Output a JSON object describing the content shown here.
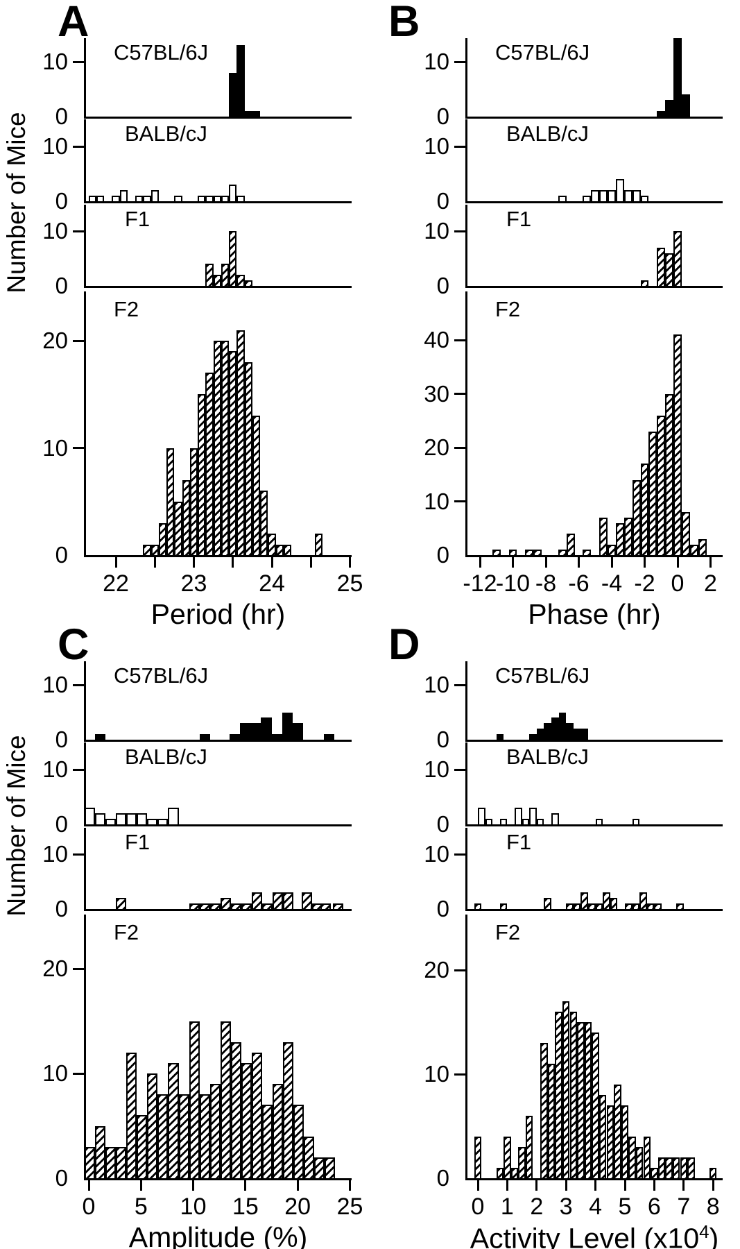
{
  "figure": {
    "ylabel": "Number of Mice",
    "strains": [
      "C57BL/6J",
      "BALB/cJ",
      "F1",
      "F2"
    ]
  },
  "chart_data": [
    {
      "panel": "A",
      "type": "bar",
      "xlabel": "Period (hr)",
      "bin_width": 0.1,
      "x_domain": [
        21.6,
        25.1
      ],
      "x_ticks": [
        {
          "v": 22,
          "label": "22"
        },
        {
          "v": 22.5,
          "label": ""
        },
        {
          "v": 23,
          "label": "23"
        },
        {
          "v": 23.5,
          "label": ""
        },
        {
          "v": 24,
          "label": "24"
        },
        {
          "v": 24.5,
          "label": ""
        },
        {
          "v": 25,
          "label": "25"
        }
      ],
      "rows": [
        {
          "strain": "C57BL/6J",
          "fill": "solid",
          "yticks": [
            0,
            10
          ],
          "ymax": 14,
          "bars": [
            [
              23.5,
              8
            ],
            [
              23.6,
              13
            ],
            [
              23.7,
              1
            ],
            [
              23.8,
              1
            ]
          ]
        },
        {
          "strain": "BALB/cJ",
          "fill": "open",
          "yticks": [
            0,
            10
          ],
          "ymax": 14,
          "bars": [
            [
              21.7,
              1
            ],
            [
              21.8,
              1
            ],
            [
              22.0,
              1
            ],
            [
              22.1,
              2
            ],
            [
              22.3,
              1
            ],
            [
              22.4,
              1
            ],
            [
              22.5,
              2
            ],
            [
              22.8,
              1
            ],
            [
              23.1,
              1
            ],
            [
              23.2,
              1
            ],
            [
              23.3,
              1
            ],
            [
              23.4,
              1
            ],
            [
              23.5,
              3
            ],
            [
              23.6,
              1
            ]
          ]
        },
        {
          "strain": "F1",
          "fill": "hatch",
          "yticks": [
            0,
            10
          ],
          "ymax": 14,
          "bars": [
            [
              23.2,
              4
            ],
            [
              23.3,
              2
            ],
            [
              23.4,
              4
            ],
            [
              23.5,
              10
            ],
            [
              23.6,
              2
            ],
            [
              23.7,
              1
            ]
          ]
        },
        {
          "strain": "F2",
          "fill": "hatch",
          "yticks": [
            0,
            10,
            20
          ],
          "ymax": 24.5,
          "bars": [
            [
              22.4,
              1
            ],
            [
              22.5,
              1
            ],
            [
              22.6,
              3
            ],
            [
              22.7,
              10
            ],
            [
              22.8,
              5
            ],
            [
              22.9,
              7
            ],
            [
              23.0,
              10
            ],
            [
              23.1,
              15
            ],
            [
              23.2,
              17
            ],
            [
              23.3,
              20
            ],
            [
              23.4,
              20
            ],
            [
              23.5,
              19
            ],
            [
              23.6,
              21
            ],
            [
              23.7,
              18
            ],
            [
              23.8,
              13
            ],
            [
              23.9,
              6
            ],
            [
              24.0,
              2
            ],
            [
              24.1,
              1
            ],
            [
              24.2,
              1
            ],
            [
              24.6,
              2
            ]
          ]
        }
      ]
    },
    {
      "panel": "B",
      "type": "bar",
      "xlabel": "Phase (hr)",
      "bin_width": 0.5,
      "x_domain": [
        -13,
        2.8
      ],
      "x_ticks": [
        {
          "v": -12,
          "label": "-12"
        },
        {
          "v": -10,
          "label": "-10"
        },
        {
          "v": -8,
          "label": "-8"
        },
        {
          "v": -6,
          "label": "-6"
        },
        {
          "v": -4,
          "label": "-4"
        },
        {
          "v": -2,
          "label": "-2"
        },
        {
          "v": 0,
          "label": "0"
        },
        {
          "v": 2,
          "label": "2"
        }
      ],
      "rows": [
        {
          "strain": "C57BL/6J",
          "fill": "solid",
          "yticks": [
            0,
            10
          ],
          "ymax": 14,
          "bars": [
            [
              -1,
              1
            ],
            [
              -0.5,
              3
            ],
            [
              0,
              15
            ],
            [
              0.5,
              4
            ]
          ]
        },
        {
          "strain": "BALB/cJ",
          "fill": "open",
          "yticks": [
            0,
            10
          ],
          "ymax": 14,
          "bars": [
            [
              -7,
              1
            ],
            [
              -5.5,
              1
            ],
            [
              -5,
              2
            ],
            [
              -4.5,
              2
            ],
            [
              -4,
              2
            ],
            [
              -3.5,
              4
            ],
            [
              -3,
              2
            ],
            [
              -2.5,
              2
            ],
            [
              -2,
              1
            ]
          ]
        },
        {
          "strain": "F1",
          "fill": "hatch",
          "yticks": [
            0,
            10
          ],
          "ymax": 14,
          "bars": [
            [
              -2,
              1
            ],
            [
              -1,
              7
            ],
            [
              -0.5,
              6
            ],
            [
              0,
              10
            ]
          ]
        },
        {
          "strain": "F2",
          "fill": "hatch",
          "yticks": [
            0,
            10,
            20,
            30,
            40
          ],
          "ymax": 49,
          "bars": [
            [
              -11,
              1
            ],
            [
              -10,
              1
            ],
            [
              -9,
              1
            ],
            [
              -8.5,
              1
            ],
            [
              -7,
              1
            ],
            [
              -6.5,
              4
            ],
            [
              -5.5,
              1
            ],
            [
              -4.5,
              7
            ],
            [
              -4,
              2
            ],
            [
              -3.5,
              6
            ],
            [
              -3,
              7
            ],
            [
              -2.5,
              14
            ],
            [
              -2,
              17
            ],
            [
              -1.5,
              23
            ],
            [
              -1,
              26
            ],
            [
              -0.5,
              30
            ],
            [
              0,
              41
            ],
            [
              0.5,
              8
            ],
            [
              1,
              2
            ],
            [
              1.5,
              3
            ]
          ]
        }
      ]
    },
    {
      "panel": "C",
      "type": "bar",
      "xlabel": "Amplitude (%)",
      "bin_width": 1,
      "x_domain": [
        -0.5,
        25.3
      ],
      "x_ticks": [
        {
          "v": 0,
          "label": "0"
        },
        {
          "v": 5,
          "label": "5"
        },
        {
          "v": 10,
          "label": "10"
        },
        {
          "v": 15,
          "label": "15"
        },
        {
          "v": 20,
          "label": "20"
        },
        {
          "v": 25,
          "label": "25"
        }
      ],
      "rows": [
        {
          "strain": "C57BL/6J",
          "fill": "solid",
          "yticks": [
            0,
            10
          ],
          "ymax": 14,
          "bars": [
            [
              1.1,
              1
            ],
            [
              11.1,
              1
            ],
            [
              14,
              1
            ],
            [
              15,
              3
            ],
            [
              16,
              3
            ],
            [
              17,
              4
            ],
            [
              18,
              1
            ],
            [
              19,
              5
            ],
            [
              20,
              3
            ],
            [
              23,
              1
            ]
          ]
        },
        {
          "strain": "BALB/cJ",
          "fill": "open",
          "yticks": [
            0,
            10
          ],
          "ymax": 14,
          "bars": [
            [
              0.1,
              3
            ],
            [
              1.1,
              2
            ],
            [
              2.1,
              1
            ],
            [
              3.1,
              2
            ],
            [
              4.1,
              2
            ],
            [
              5.1,
              2
            ],
            [
              6.1,
              1
            ],
            [
              7.1,
              1
            ],
            [
              8.1,
              3
            ]
          ]
        },
        {
          "strain": "F1",
          "fill": "hatch",
          "yticks": [
            0,
            10
          ],
          "ymax": 14,
          "bars": [
            [
              3.1,
              2
            ],
            [
              10.1,
              1
            ],
            [
              11.1,
              1
            ],
            [
              12.1,
              1
            ],
            [
              13.1,
              2
            ],
            [
              14.1,
              1
            ],
            [
              15.1,
              1
            ],
            [
              16.1,
              3
            ],
            [
              17.1,
              1
            ],
            [
              18.1,
              3
            ],
            [
              19.1,
              3
            ],
            [
              20.9,
              3
            ],
            [
              21.9,
              1
            ],
            [
              22.7,
              1
            ],
            [
              23.9,
              1
            ]
          ]
        },
        {
          "strain": "F2",
          "fill": "hatch",
          "yticks": [
            0,
            10,
            20
          ],
          "ymax": 25,
          "bars": [
            [
              0.1,
              3
            ],
            [
              1.1,
              5
            ],
            [
              2.1,
              3
            ],
            [
              3.1,
              3
            ],
            [
              4.1,
              12
            ],
            [
              5.1,
              6
            ],
            [
              6.1,
              10
            ],
            [
              7.1,
              8
            ],
            [
              8.1,
              11
            ],
            [
              9.1,
              8
            ],
            [
              10.1,
              15
            ],
            [
              11.1,
              8
            ],
            [
              12.1,
              9
            ],
            [
              13.1,
              15
            ],
            [
              14.1,
              13
            ],
            [
              15.1,
              11
            ],
            [
              16.1,
              12
            ],
            [
              17.1,
              7
            ],
            [
              18.1,
              9
            ],
            [
              19.1,
              13
            ],
            [
              20.1,
              7
            ],
            [
              21.1,
              4
            ],
            [
              22.1,
              2
            ],
            [
              23.1,
              2
            ]
          ]
        }
      ]
    },
    {
      "panel": "D",
      "type": "bar",
      "xlabel_pre": "Activity Level (x10",
      "xlabel_sup": "4",
      "xlabel_post": ")",
      "bin_width": 0.25,
      "x_domain": [
        -0.5,
        8.4
      ],
      "x_ticks": [
        {
          "v": 0,
          "label": "0"
        },
        {
          "v": 1,
          "label": "1"
        },
        {
          "v": 2,
          "label": "2"
        },
        {
          "v": 3,
          "label": "3"
        },
        {
          "v": 4,
          "label": "4"
        },
        {
          "v": 5,
          "label": "5"
        },
        {
          "v": 6,
          "label": "6"
        },
        {
          "v": 7,
          "label": "7"
        },
        {
          "v": 8,
          "label": "8"
        }
      ],
      "rows": [
        {
          "strain": "C57BL/6J",
          "fill": "solid",
          "yticks": [
            0,
            10
          ],
          "ymax": 14,
          "bars": [
            [
              0.75,
              1
            ],
            [
              1.875,
              1
            ],
            [
              2.125,
              2
            ],
            [
              2.375,
              3
            ],
            [
              2.625,
              4
            ],
            [
              2.875,
              5
            ],
            [
              3.125,
              3
            ],
            [
              3.375,
              2
            ],
            [
              3.625,
              2
            ]
          ]
        },
        {
          "strain": "BALB/cJ",
          "fill": "open",
          "yticks": [
            0,
            10
          ],
          "ymax": 14,
          "bars": [
            [
              0.125,
              3
            ],
            [
              0.375,
              1
            ],
            [
              0.875,
              1
            ],
            [
              1.375,
              3
            ],
            [
              1.625,
              1
            ],
            [
              1.875,
              3
            ],
            [
              2.125,
              1
            ],
            [
              2.625,
              2
            ],
            [
              4.125,
              1
            ],
            [
              5.375,
              1
            ]
          ]
        },
        {
          "strain": "F1",
          "fill": "hatch",
          "yticks": [
            0,
            10
          ],
          "ymax": 14,
          "bars": [
            [
              0,
              1
            ],
            [
              0.875,
              1
            ],
            [
              2.375,
              2
            ],
            [
              3.125,
              1
            ],
            [
              3.375,
              1
            ],
            [
              3.625,
              3
            ],
            [
              3.875,
              1
            ],
            [
              4.125,
              1
            ],
            [
              4.375,
              3
            ],
            [
              4.625,
              2
            ],
            [
              5.125,
              1
            ],
            [
              5.375,
              1
            ],
            [
              5.625,
              3
            ],
            [
              5.875,
              1
            ],
            [
              6.125,
              1
            ],
            [
              6.875,
              1
            ]
          ]
        },
        {
          "strain": "F2",
          "fill": "hatch",
          "yticks": [
            0,
            10,
            20
          ],
          "ymax": 25,
          "bars": [
            [
              0,
              4
            ],
            [
              0.75,
              1
            ],
            [
              1.0,
              4
            ],
            [
              1.25,
              1
            ],
            [
              1.5,
              3
            ],
            [
              1.75,
              6
            ],
            [
              2.25,
              13
            ],
            [
              2.5,
              11
            ],
            [
              2.75,
              16
            ],
            [
              3.0,
              17
            ],
            [
              3.25,
              16
            ],
            [
              3.5,
              15
            ],
            [
              3.75,
              15
            ],
            [
              4.0,
              14
            ],
            [
              4.25,
              8
            ],
            [
              4.5,
              7
            ],
            [
              4.75,
              9
            ],
            [
              5.0,
              7
            ],
            [
              5.25,
              4
            ],
            [
              5.5,
              3
            ],
            [
              5.75,
              4
            ],
            [
              6.0,
              1
            ],
            [
              6.25,
              2
            ],
            [
              6.5,
              2
            ],
            [
              6.75,
              2
            ],
            [
              7.0,
              2
            ],
            [
              7.25,
              2
            ],
            [
              8.0,
              1
            ]
          ]
        }
      ]
    }
  ]
}
